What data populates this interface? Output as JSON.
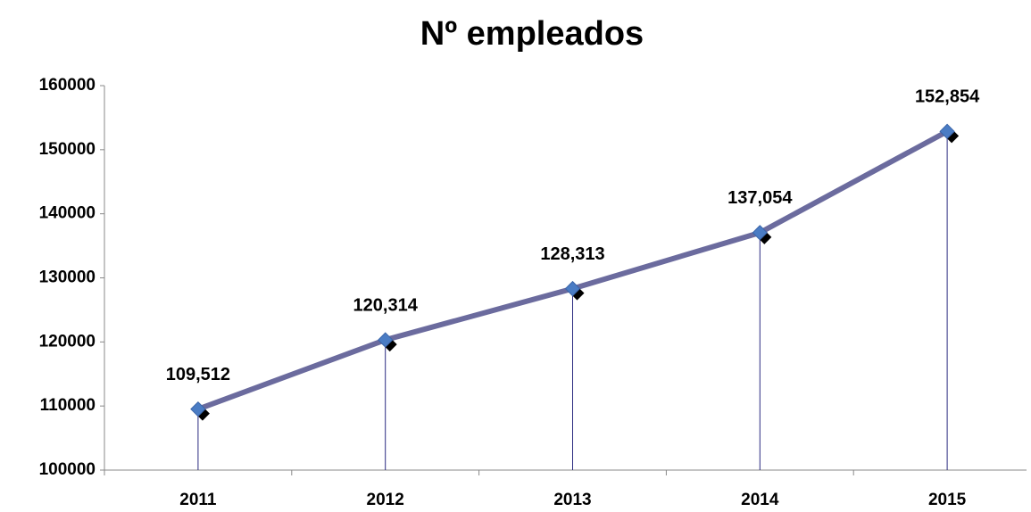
{
  "chart_data": {
    "type": "line",
    "title": "Nº empleados",
    "categories": [
      "2011",
      "2012",
      "2013",
      "2014",
      "2015"
    ],
    "series": [
      {
        "name": "Nº empleados",
        "color": "#6b6b9e",
        "values": [
          109512,
          120314,
          128313,
          137054,
          152854
        ],
        "value_labels": [
          "109,512",
          "120,314",
          "128,313",
          "137,054",
          "152,854"
        ]
      }
    ],
    "ylim": [
      100000,
      160000
    ],
    "yticks": [
      100000,
      110000,
      120000,
      130000,
      140000,
      150000,
      160000
    ],
    "marker_color": "#4a7cc4",
    "drop_lines": true
  }
}
